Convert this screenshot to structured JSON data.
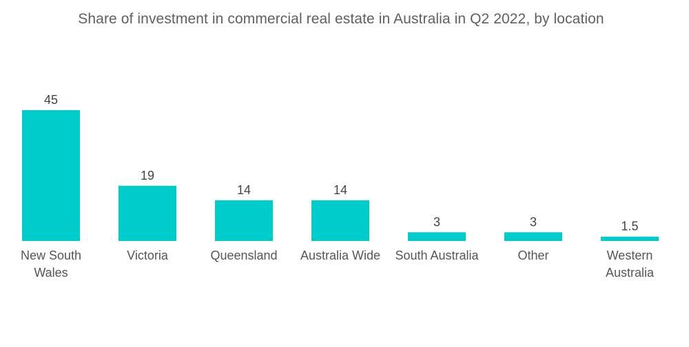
{
  "chart_data": {
    "type": "bar",
    "title": "Share of investment in commercial real estate in Australia in Q2 2022, by location",
    "categories": [
      "New South Wales",
      "Victoria",
      "Queensland",
      "Australia Wide",
      "South Australia",
      "Other",
      "Western Australia"
    ],
    "category_lines": [
      [
        "New South",
        "Wales"
      ],
      [
        "Victoria"
      ],
      [
        "Queensland"
      ],
      [
        "Australia Wide"
      ],
      [
        "South Australia"
      ],
      [
        "Other"
      ],
      [
        "Western",
        "Australia"
      ]
    ],
    "values": [
      45,
      19,
      14,
      14,
      3,
      3,
      1.5
    ],
    "value_labels": [
      "45",
      "19",
      "14",
      "14",
      "3",
      "3",
      "1.5"
    ],
    "bar_color": "#00cccc",
    "xlabel": "",
    "ylabel": "",
    "ylim": [
      0,
      45
    ],
    "grid": false,
    "legend": "none"
  }
}
